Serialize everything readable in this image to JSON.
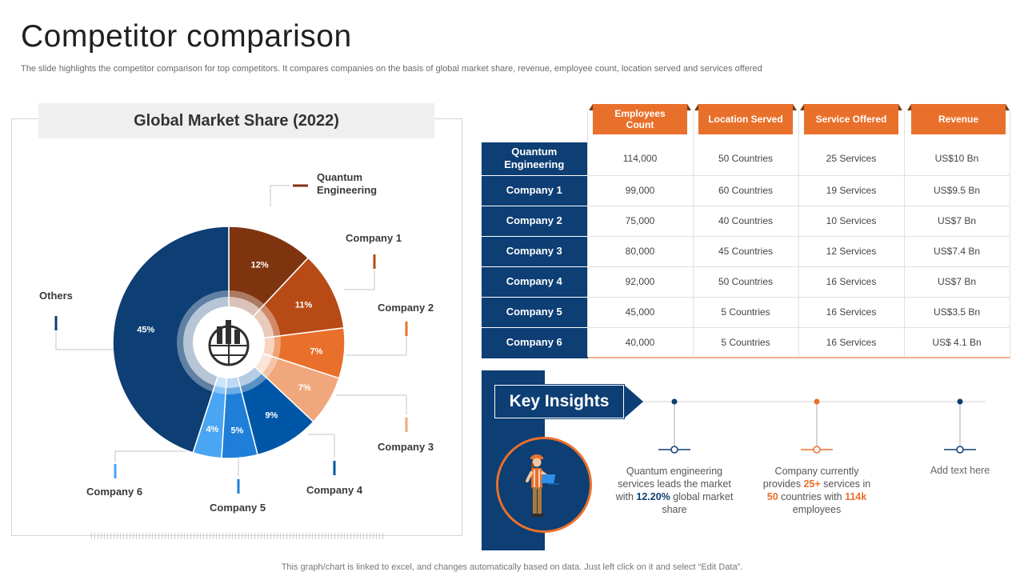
{
  "header": {
    "title": "Competitor comparison",
    "subtitle": "The slide highlights the competitor comparison for top competitors. It compares companies on the basis of global market share, revenue, employee count, location served and services offered"
  },
  "colors": {
    "navy": "#0d3e74",
    "orange": "#e9702b"
  },
  "chart_data": {
    "type": "pie",
    "title": "Global Market Share (2022)",
    "center_icon": "globe-buildings-icon",
    "slices": [
      {
        "label": "Quantum Engineering",
        "value": 12,
        "value_label": "12%",
        "color": "#7f3410"
      },
      {
        "label": "Company 1",
        "value": 11,
        "value_label": "11%",
        "color": "#b84a16"
      },
      {
        "label": "Company 2",
        "value": 7,
        "value_label": "7%",
        "color": "#e9702b"
      },
      {
        "label": "Company 3",
        "value": 7,
        "value_label": "7%",
        "color": "#f0a77c"
      },
      {
        "label": "Company 4",
        "value": 9,
        "value_label": "9%",
        "color": "#0056a6"
      },
      {
        "label": "Company 5",
        "value": 5,
        "value_label": "5%",
        "color": "#1f7fd8"
      },
      {
        "label": "Company 6",
        "value": 4,
        "value_label": "4%",
        "color": "#4aa6f2"
      },
      {
        "label": "Others",
        "value": 45,
        "value_label": "45%",
        "color": "#0d3e74"
      }
    ]
  },
  "table": {
    "columns": [
      "Employees Count",
      "Location Served",
      "Service Offered",
      "Revenue"
    ],
    "rows": [
      {
        "name": "Quantum Engineering",
        "cells": [
          "114,000",
          "50 Countries",
          "25 Services",
          "US$10 Bn"
        ]
      },
      {
        "name": "Company 1",
        "cells": [
          "99,000",
          "60 Countries",
          "19 Services",
          "US$9.5 Bn"
        ]
      },
      {
        "name": "Company 2",
        "cells": [
          "75,000",
          "40 Countries",
          "10 Services",
          "US$7 Bn"
        ]
      },
      {
        "name": "Company 3",
        "cells": [
          "80,000",
          "45 Countries",
          "12 Services",
          "US$7.4 Bn"
        ]
      },
      {
        "name": "Company 4",
        "cells": [
          "92,000",
          "50 Countries",
          "16 Services",
          "US$7 Bn"
        ]
      },
      {
        "name": "Company 5",
        "cells": [
          "45,000",
          "5 Countries",
          "16 Services",
          "US$3.5 Bn"
        ]
      },
      {
        "name": "Company 6",
        "cells": [
          "40,000",
          "5 Countries",
          "16 Services",
          "US$ 4.1 Bn"
        ]
      }
    ]
  },
  "insights": {
    "title": "Key Insights",
    "icon": "worker-with-laptop-icon",
    "items": [
      {
        "pre": "Quantum engineering services leads the market with ",
        "hl": "12.20%",
        "post": " global market share",
        "hl_color": "blue"
      },
      {
        "p1": "Company currently provides ",
        "h1": "25+",
        "p2": " services in ",
        "h2": "50",
        "p3": " countries with ",
        "h3": "114k",
        "p4": " employees"
      },
      {
        "text": "Add text here"
      }
    ]
  },
  "footer": "This graph/chart is linked to excel,  and changes automatically based on data. Just left click on it and select “Edit Data”."
}
